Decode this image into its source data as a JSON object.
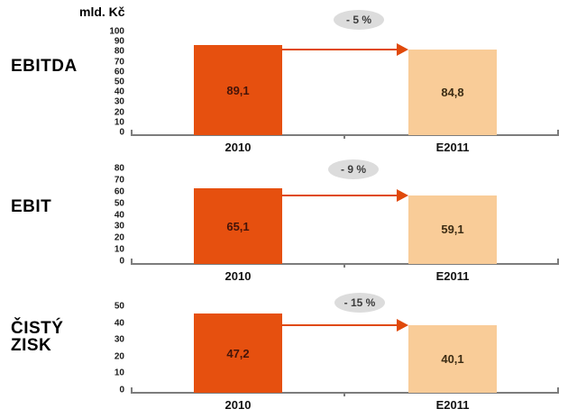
{
  "unit_label": "mld. Kč",
  "colors": {
    "bar_2010": "#e6500f",
    "bar_e2011": "#f9cc98",
    "arrow": "#e0490a",
    "axis": "#7d7d7d",
    "badge_bg": "#dcdcdc",
    "badge_text": "#3c3c3c",
    "value_text_2010": "#44140a",
    "value_text_e2011": "#3c2c14"
  },
  "chart_data": [
    {
      "type": "bar",
      "title": "EBITDA",
      "ylabel": "mld. Kč",
      "categories": [
        "2010",
        "E2011"
      ],
      "values": [
        89.1,
        84.8
      ],
      "value_labels": [
        "89,1",
        "84,8"
      ],
      "change_badge": "- 5 %",
      "ylim": [
        0,
        100
      ],
      "ytick_step": 10,
      "yticks": [
        0,
        10,
        20,
        30,
        40,
        50,
        60,
        70,
        80,
        90,
        100
      ],
      "grid": false,
      "legend": false
    },
    {
      "type": "bar",
      "title": "EBIT",
      "categories": [
        "2010",
        "E2011"
      ],
      "values": [
        65.1,
        59.1
      ],
      "value_labels": [
        "65,1",
        "59,1"
      ],
      "change_badge": "- 9 %",
      "ylim": [
        0,
        80
      ],
      "ytick_step": 10,
      "yticks": [
        0,
        10,
        20,
        30,
        40,
        50,
        60,
        70,
        80
      ],
      "grid": false,
      "legend": false
    },
    {
      "type": "bar",
      "title": "ČISTÝ ZISK",
      "categories": [
        "2010",
        "E2011"
      ],
      "values": [
        47.2,
        40.1
      ],
      "value_labels": [
        "47,2",
        "40,1"
      ],
      "change_badge": "- 15 %",
      "ylim": [
        0,
        50
      ],
      "ytick_step": 10,
      "yticks": [
        0,
        10,
        20,
        30,
        40,
        50
      ],
      "grid": false,
      "legend": false
    }
  ]
}
